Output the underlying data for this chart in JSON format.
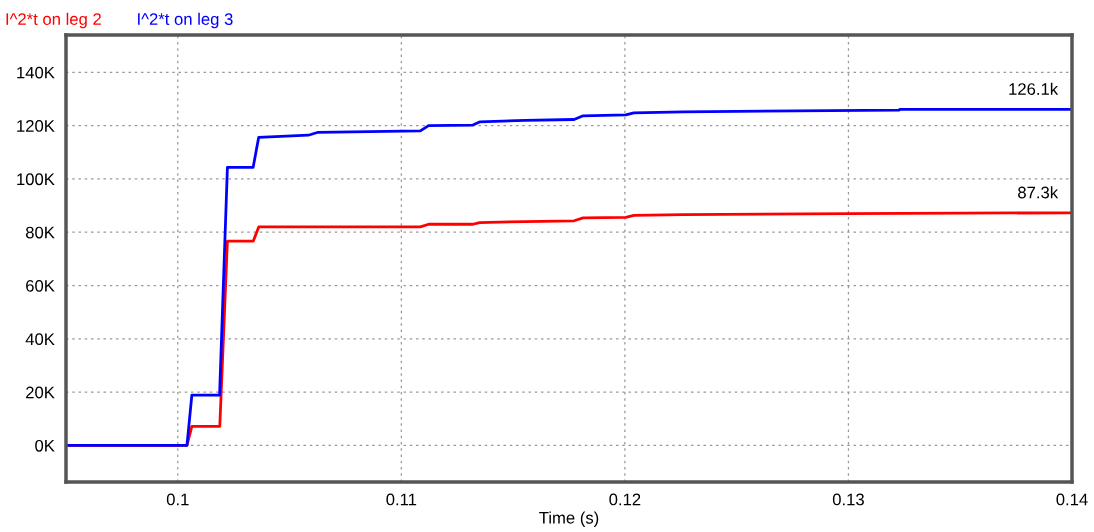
{
  "chart_data": {
    "type": "line",
    "xlabel": "Time (s)",
    "xlim": [
      0.095,
      0.14
    ],
    "xticks": [
      0.1,
      0.11,
      0.12,
      0.13,
      0.14
    ],
    "ylim": [
      -13700,
      154000
    ],
    "yticks": [
      {
        "value": 0,
        "label": "0K"
      },
      {
        "value": 20000,
        "label": "20K"
      },
      {
        "value": 40000,
        "label": "40K"
      },
      {
        "value": 60000,
        "label": "60K"
      },
      {
        "value": 80000,
        "label": "80K"
      },
      {
        "value": 100000,
        "label": "100K"
      },
      {
        "value": 120000,
        "label": "120K"
      },
      {
        "value": 140000,
        "label": "140K"
      }
    ],
    "grid": true,
    "legend": "top left",
    "line_style": "solid",
    "series": [
      {
        "name": "I^2*t on leg 2",
        "color": "#ff0000",
        "x": [
          0.095,
          0.10041,
          0.10063,
          0.10188,
          0.10222,
          0.10338,
          0.10362,
          0.11085,
          0.11122,
          0.1132,
          0.1135,
          0.11554,
          0.11773,
          0.11813,
          0.12004,
          0.1204,
          0.1226,
          0.13,
          0.14
        ],
        "values": [
          0,
          0,
          7200,
          7200,
          76700,
          76700,
          82000,
          82000,
          83000,
          83000,
          83600,
          84000,
          84300,
          85400,
          85600,
          86300,
          86600,
          87000,
          87300
        ]
      },
      {
        "name": "I^2*t on leg 3",
        "color": "#0000ff",
        "x": [
          0.095,
          0.10041,
          0.10063,
          0.10187,
          0.10222,
          0.10337,
          0.10362,
          0.10584,
          0.10628,
          0.11085,
          0.11122,
          0.1132,
          0.1135,
          0.11554,
          0.11773,
          0.11813,
          0.12004,
          0.1204,
          0.1226,
          0.13226,
          0.1323,
          0.14
        ],
        "values": [
          0,
          0,
          18900,
          18900,
          104300,
          104300,
          115600,
          116400,
          117500,
          118000,
          120000,
          120200,
          121400,
          122000,
          122300,
          123700,
          124000,
          124800,
          125200,
          125800,
          126100,
          126100
        ]
      }
    ],
    "annotations": [
      {
        "text": "126.1k",
        "x": 0.14,
        "y": 126100
      },
      {
        "text": "87.3k",
        "x": 0.14,
        "y": 87300
      }
    ]
  }
}
